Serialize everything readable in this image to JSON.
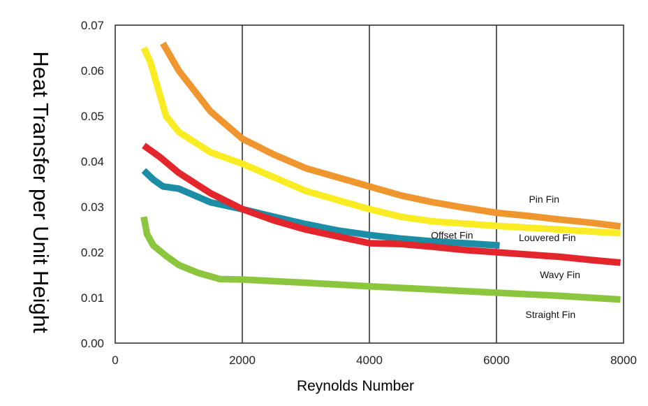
{
  "chart_data": {
    "type": "line",
    "title": "",
    "xlabel": "Reynolds Number",
    "ylabel": "Heat Transfer per Unit Height",
    "xlim": [
      0,
      8000
    ],
    "ylim": [
      0,
      0.07
    ],
    "xticks": [
      0,
      2000,
      4000,
      6000,
      8000
    ],
    "xtick_labels": [
      "0",
      "2000",
      "4000",
      "6000",
      "8000"
    ],
    "yticks": [
      0,
      0.01,
      0.02,
      0.03,
      0.04,
      0.05,
      0.06,
      0.07
    ],
    "ytick_labels": [
      "0.00",
      "0.01",
      "0.02",
      "0.03",
      "0.04",
      "0.05",
      "0.06",
      "0.07"
    ],
    "vertical_grid": [
      2000,
      4000,
      6000
    ],
    "series": [
      {
        "name": "Pin Fin",
        "color": "#f0962e",
        "x": [
          750,
          1000,
          1500,
          2000,
          2500,
          3000,
          3500,
          4000,
          4500,
          5000,
          5500,
          6000,
          6500,
          7000,
          7500,
          7950
        ],
        "y": [
          0.066,
          0.06,
          0.051,
          0.045,
          0.0415,
          0.0385,
          0.0365,
          0.0345,
          0.0325,
          0.031,
          0.0298,
          0.0287,
          0.028,
          0.0272,
          0.0265,
          0.0257
        ]
      },
      {
        "name": "Louvered Fin",
        "color": "#f9ec23",
        "x": [
          450,
          550,
          800,
          1000,
          1500,
          2000,
          2500,
          3000,
          3500,
          4000,
          4500,
          5000,
          6000,
          7000,
          7950
        ],
        "y": [
          0.065,
          0.062,
          0.05,
          0.0465,
          0.042,
          0.0395,
          0.0365,
          0.0335,
          0.0315,
          0.0295,
          0.0278,
          0.0268,
          0.0258,
          0.025,
          0.0242
        ]
      },
      {
        "name": "Offset Fin",
        "color": "#1b8ea6",
        "x": [
          450,
          600,
          750,
          1000,
          1500,
          2000,
          2500,
          3000,
          3500,
          4000,
          4500,
          5000,
          5500,
          6050
        ],
        "y": [
          0.038,
          0.036,
          0.0345,
          0.034,
          0.031,
          0.0295,
          0.0278,
          0.0262,
          0.0248,
          0.0238,
          0.023,
          0.0224,
          0.022,
          0.0215
        ]
      },
      {
        "name": "Wavy Fin",
        "color": "#e3262c",
        "x": [
          450,
          700,
          1000,
          1500,
          2000,
          2500,
          3000,
          3500,
          4000,
          4500,
          5000,
          5500,
          6000,
          6500,
          7000,
          7500,
          7950
        ],
        "y": [
          0.0435,
          0.041,
          0.0375,
          0.033,
          0.0295,
          0.027,
          0.025,
          0.0235,
          0.022,
          0.0218,
          0.0212,
          0.0205,
          0.02,
          0.0195,
          0.019,
          0.0183,
          0.0177
        ]
      },
      {
        "name": "Straight Fin",
        "color": "#8cc63f",
        "x": [
          450,
          500,
          600,
          800,
          1000,
          1300,
          1650,
          2000,
          3000,
          4000,
          5000,
          6000,
          7000,
          7950
        ],
        "y": [
          0.0278,
          0.024,
          0.0215,
          0.0192,
          0.0172,
          0.0155,
          0.0141,
          0.014,
          0.0133,
          0.0125,
          0.0118,
          0.0111,
          0.0104,
          0.0096
        ]
      }
    ],
    "annotations": [
      {
        "text": "Pin Fin",
        "x": 6750,
        "y": 0.0317
      },
      {
        "text": "Offset Fin",
        "x": 5300,
        "y": 0.0238
      },
      {
        "text": "Louvered Fin",
        "x": 6800,
        "y": 0.0232
      },
      {
        "text": "Wavy Fin",
        "x": 7000,
        "y": 0.0151
      },
      {
        "text": "Straight Fin",
        "x": 6850,
        "y": 0.0063
      }
    ],
    "grid": "vertical-only",
    "legend": "inline-labels"
  }
}
